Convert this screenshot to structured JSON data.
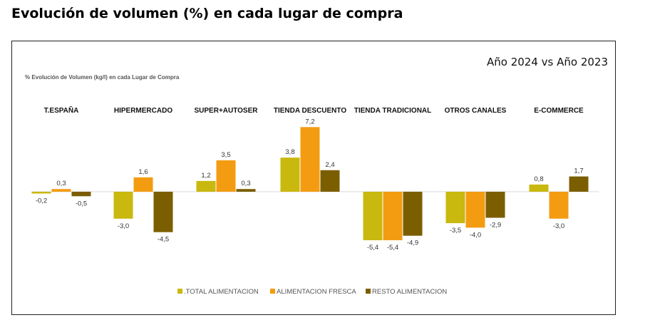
{
  "page": {
    "title": "Evolución de volumen (%) en cada lugar de compra",
    "comparison": "Año 2024 vs Año 2023",
    "subtitle": "% Evolución de Volumen (kg/l) en cada Lugar de Compra"
  },
  "chart_data": {
    "type": "bar",
    "title": "% Evolución de Volumen (kg/l) en cada Lugar de Compra",
    "categories": [
      "T.ESPAÑA",
      "HIPERMERCADO",
      "SUPER+AUTOSER",
      "TIENDA DESCUENTO",
      "TIENDA TRADICIONAL",
      "OTROS CANALES",
      "E-COMMERCE"
    ],
    "series": [
      {
        "name": ".TOTAL ALIMENTACION",
        "color": "#C9B80E",
        "values": [
          -0.2,
          -3.0,
          1.2,
          3.8,
          -5.4,
          -3.5,
          0.8
        ],
        "labels": [
          "-0,2",
          "-3,0",
          "1,2",
          "3,8",
          "-5,4",
          "-3,5",
          "0,8"
        ]
      },
      {
        "name": "ALIMENTACION FRESCA",
        "color": "#F39C12",
        "values": [
          0.3,
          1.6,
          3.5,
          7.2,
          -5.4,
          -4.0,
          -3.0
        ],
        "labels": [
          "0,3",
          "1,6",
          "3,5",
          "7,2",
          "-5,4",
          "-4,0",
          "-3,0"
        ]
      },
      {
        "name": "RESTO ALIMENTACION",
        "color": "#7B5E00",
        "values": [
          -0.5,
          -4.5,
          0.3,
          2.4,
          -4.9,
          -2.9,
          1.7
        ],
        "labels": [
          "-0,5",
          "-4,5",
          "0,3",
          "2,4",
          "-4,9",
          "-2,9",
          "1,7"
        ]
      }
    ],
    "legend_position": "bottom",
    "grid": false
  }
}
